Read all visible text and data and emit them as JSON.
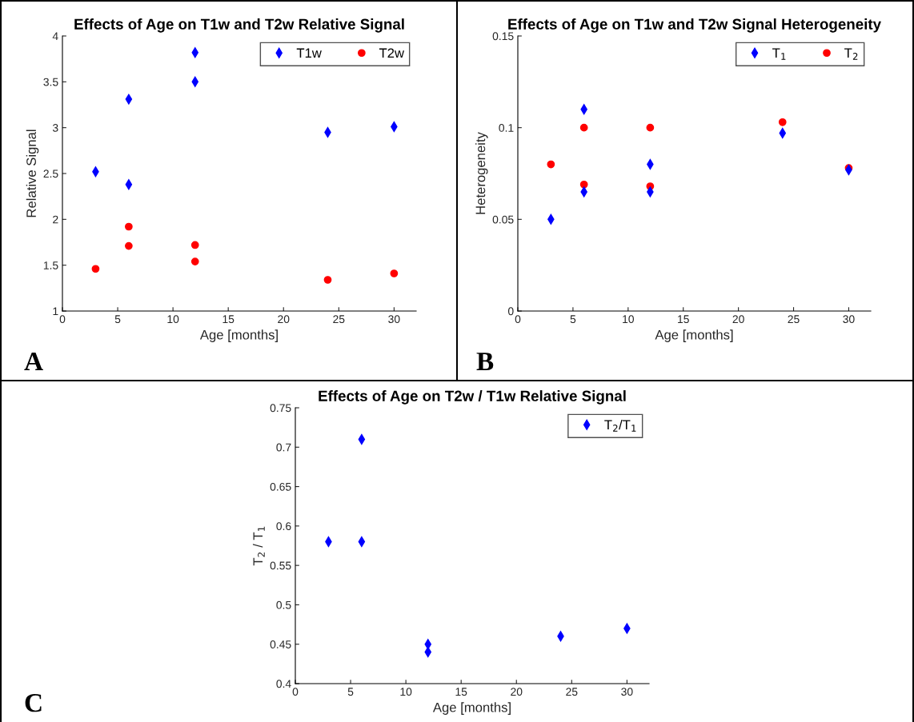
{
  "chart_data": [
    {
      "type": "scatter",
      "title": "Effects of Age on T1w and T2w Relative Signal",
      "xlabel": "Age [months]",
      "ylabel": "Relative Signal",
      "xlim": [
        0,
        32
      ],
      "xticks": [
        0,
        5,
        10,
        15,
        20,
        25,
        30
      ],
      "ylim": [
        1,
        4
      ],
      "yticks": [
        1,
        1.5,
        2,
        2.5,
        3,
        3.5,
        4
      ],
      "grid": false,
      "legend": "top right",
      "annotations": [
        "A"
      ],
      "series": [
        {
          "name": "T1w",
          "color": "#0000ff",
          "marker": "diamond",
          "x": [
            3,
            6,
            6,
            12,
            12,
            24,
            30
          ],
          "values": [
            2.52,
            3.31,
            2.38,
            3.82,
            3.5,
            2.95,
            3.01
          ]
        },
        {
          "name": "T2w",
          "color": "#ff0000",
          "marker": "circle",
          "x": [
            3,
            6,
            6,
            12,
            12,
            24,
            30
          ],
          "values": [
            1.46,
            1.92,
            1.71,
            1.72,
            1.54,
            1.34,
            1.41
          ]
        }
      ]
    },
    {
      "type": "scatter",
      "title": "Effects of Age on T1w and T2w Signal Heterogeneity",
      "xlabel": "Age [months]",
      "ylabel": "Heterogeneity",
      "xlim": [
        0,
        32
      ],
      "xticks": [
        0,
        5,
        10,
        15,
        20,
        25,
        30
      ],
      "ylim": [
        0,
        0.15
      ],
      "yticks": [
        0,
        0.05,
        0.1,
        0.15
      ],
      "grid": false,
      "legend": "top right",
      "annotations": [
        "B"
      ],
      "series": [
        {
          "name": "T$_{1}$",
          "color": "#0000ff",
          "marker": "diamond",
          "x": [
            3,
            6,
            6,
            12,
            12,
            24,
            30
          ],
          "values": [
            0.05,
            0.11,
            0.065,
            0.08,
            0.065,
            0.097,
            0.077
          ]
        },
        {
          "name": "T$_{2}$",
          "color": "#ff0000",
          "marker": "circle",
          "x": [
            3,
            6,
            6,
            12,
            12,
            24,
            30
          ],
          "values": [
            0.08,
            0.1,
            0.069,
            0.1,
            0.068,
            0.103,
            0.078
          ]
        }
      ]
    },
    {
      "type": "scatter",
      "title": "Effects of Age on T2w / T1w Relative Signal",
      "xlabel": "Age [months]",
      "ylabel": "T$_{2}$ / T$_{1}$",
      "xlim": [
        0,
        32
      ],
      "xticks": [
        0,
        5,
        10,
        15,
        20,
        25,
        30
      ],
      "ylim": [
        0.4,
        0.75
      ],
      "yticks": [
        0.4,
        0.45,
        0.5,
        0.55,
        0.6,
        0.65,
        0.7,
        0.75
      ],
      "grid": false,
      "legend": "top right",
      "annotations": [
        "C"
      ],
      "series": [
        {
          "name": "T$_{2}$/T$_{1}$",
          "color": "#0000ff",
          "marker": "diamond",
          "x": [
            3,
            6,
            6,
            12,
            12,
            24,
            30
          ],
          "values": [
            0.58,
            0.71,
            0.58,
            0.45,
            0.44,
            0.46,
            0.47
          ]
        }
      ]
    }
  ]
}
